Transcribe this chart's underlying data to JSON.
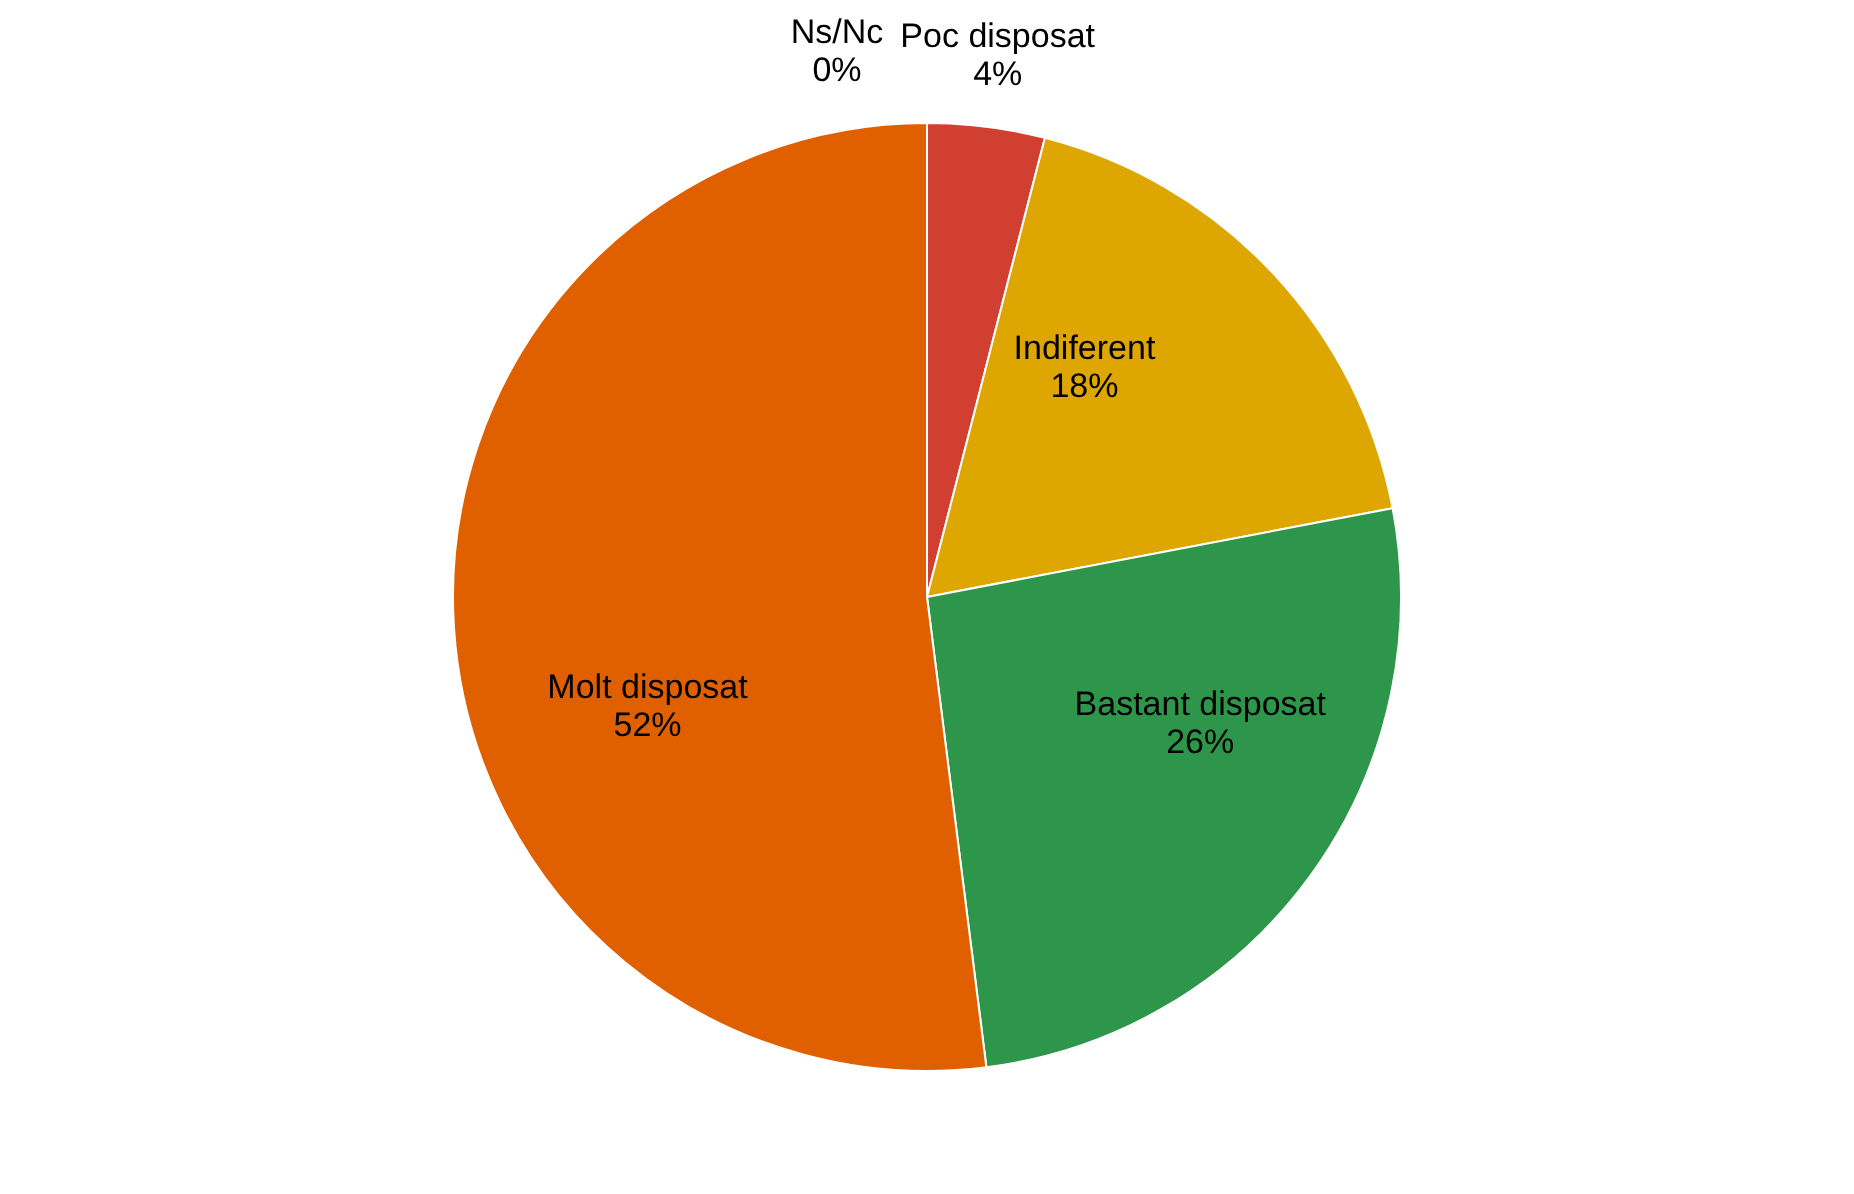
{
  "chart_data": {
    "type": "pie",
    "categories": [
      "Ns/Nc",
      "Poc disposat",
      "Indiferent",
      "Bastant disposat",
      "Molt disposat"
    ],
    "values": [
      0,
      4,
      18,
      26,
      52
    ],
    "value_labels": [
      "0%",
      "4%",
      "18%",
      "26%",
      "52%"
    ],
    "colors": [
      "#7f7f7f",
      "#d13f31",
      "#dea600",
      "#2e964a",
      "#e06000"
    ]
  }
}
